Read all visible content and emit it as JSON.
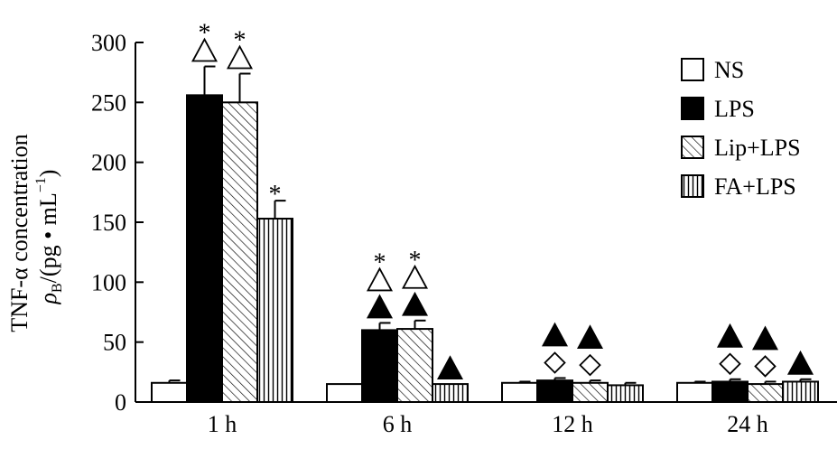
{
  "chart_data": {
    "type": "bar",
    "title": "",
    "ylabel_line1": "TNF-α concentration",
    "ylabel_line2_prefix": "ρ",
    "ylabel_line2_sub": "B",
    "ylabel_line2_suffix": "/(pg • mL",
    "ylabel_line2_sup": "−1",
    "ylabel_line2_close": ")",
    "xlabel": "",
    "ylim": [
      0,
      300
    ],
    "yticks": [
      0,
      50,
      100,
      150,
      200,
      250,
      300
    ],
    "categories": [
      "1 h",
      "6 h",
      "12 h",
      "24 h"
    ],
    "series": [
      {
        "name": "NS",
        "values": [
          16,
          15,
          16,
          16
        ],
        "errors": [
          2,
          0,
          1,
          1
        ],
        "pattern": "white"
      },
      {
        "name": "LPS",
        "values": [
          256,
          60,
          18,
          17
        ],
        "errors": [
          24,
          6,
          2,
          2
        ],
        "pattern": "black"
      },
      {
        "name": "Lip+LPS",
        "values": [
          250,
          61,
          16,
          15
        ],
        "errors": [
          24,
          7,
          2,
          2
        ],
        "pattern": "diagonal"
      },
      {
        "name": "FA+LPS",
        "values": [
          153,
          15,
          14,
          17
        ],
        "errors": [
          15,
          0,
          2,
          2
        ],
        "pattern": "vertical"
      }
    ],
    "legend_position": "top-right",
    "annotations": [
      {
        "category": 0,
        "series": 1,
        "marks": [
          "open-triangle",
          "asterisk"
        ]
      },
      {
        "category": 0,
        "series": 2,
        "marks": [
          "open-triangle",
          "asterisk"
        ]
      },
      {
        "category": 0,
        "series": 3,
        "marks": [
          "asterisk"
        ]
      },
      {
        "category": 1,
        "series": 1,
        "marks": [
          "filled-triangle",
          "open-triangle",
          "asterisk"
        ]
      },
      {
        "category": 1,
        "series": 2,
        "marks": [
          "filled-triangle",
          "open-triangle",
          "asterisk"
        ]
      },
      {
        "category": 1,
        "series": 3,
        "marks": [
          "filled-triangle"
        ]
      },
      {
        "category": 2,
        "series": 1,
        "marks": [
          "diamond",
          "filled-triangle"
        ]
      },
      {
        "category": 2,
        "series": 2,
        "marks": [
          "diamond",
          "filled-triangle"
        ]
      },
      {
        "category": 3,
        "series": 1,
        "marks": [
          "diamond",
          "filled-triangle"
        ]
      },
      {
        "category": 3,
        "series": 2,
        "marks": [
          "diamond",
          "filled-triangle"
        ]
      },
      {
        "category": 3,
        "series": 3,
        "marks": [
          "filled-triangle"
        ]
      }
    ],
    "grid": false
  }
}
